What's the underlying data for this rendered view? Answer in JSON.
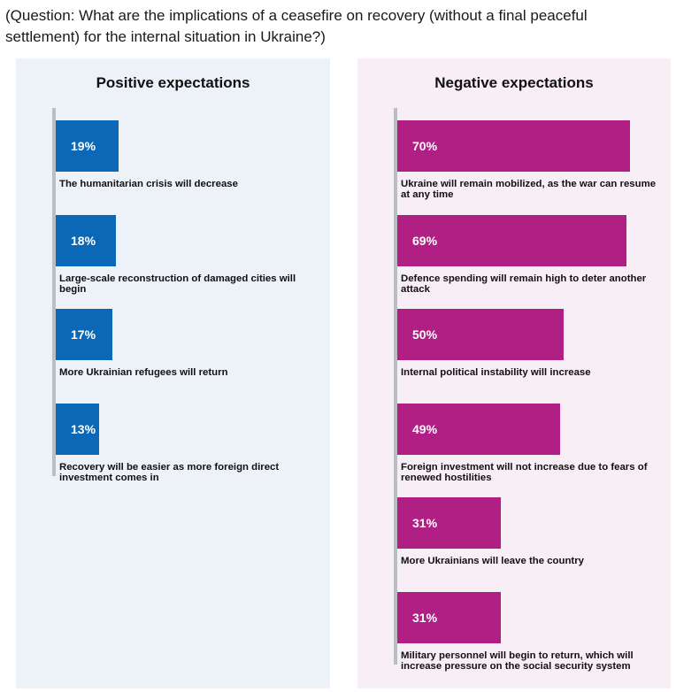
{
  "question": "(Question: What are the implications of a ceasefire on recovery (without a final peaceful settlement) for the internal situation in Ukraine?)",
  "colors": {
    "positive": "#0a68b6",
    "negative": "#b01f84"
  },
  "chart_data": [
    {
      "type": "bar",
      "orientation": "horizontal",
      "title": "Positive expectations",
      "unit": "%",
      "xlim": [
        0,
        100
      ],
      "categories": [
        "The humanitarian crisis will decrease",
        "Large-scale reconstruction of damaged cities will begin",
        "More Ukrainian refugees will return",
        "Recovery will be easier as more foreign direct investment comes in"
      ],
      "values": [
        19,
        18,
        17,
        13
      ],
      "value_labels": [
        "19%",
        "18%",
        "17%",
        "13%"
      ]
    },
    {
      "type": "bar",
      "orientation": "horizontal",
      "title": "Negative expectations",
      "unit": "%",
      "xlim": [
        0,
        100
      ],
      "categories": [
        "Ukraine will remain mobilized, as the war can resume at any time",
        "Defence spending will remain high to deter another attack",
        "Internal political instability will increase",
        "Foreign investment will not increase due to fears of renewed hostilities",
        "More Ukrainians will leave the country",
        "Military personnel will begin to return, which will increase pressure on the social security system"
      ],
      "values": [
        70,
        69,
        50,
        49,
        31,
        31
      ],
      "value_labels": [
        "70%",
        "69%",
        "50%",
        "49%",
        "31%",
        "31%"
      ]
    }
  ]
}
